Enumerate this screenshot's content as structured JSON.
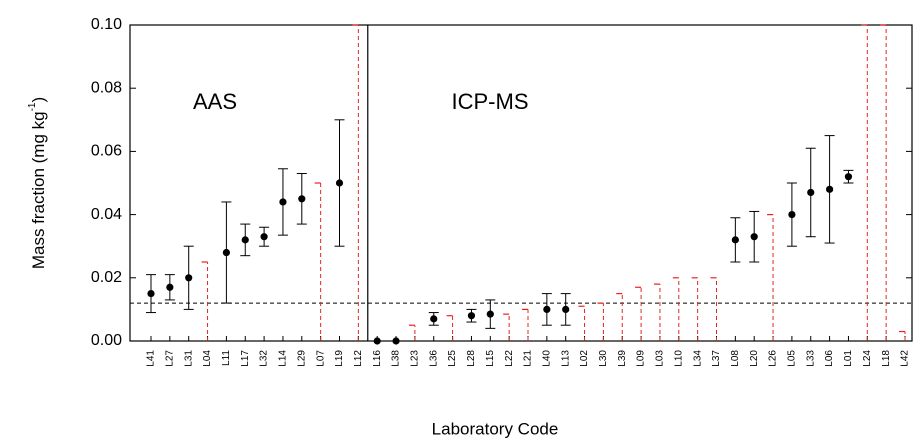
{
  "chart_data": {
    "type": "errorbar",
    "y_label_parts": [
      "Mass fraction (mg kg",
      "-1",
      ")"
    ],
    "x_label": "Laboratory Code",
    "categories": [
      "L41",
      "L27",
      "L31",
      "L04",
      "L11",
      "L17",
      "L32",
      "L14",
      "L29",
      "L07",
      "L19",
      "L12",
      "L16",
      "L38",
      "L23",
      "L36",
      "L25",
      "L28",
      "L15",
      "L22",
      "L21",
      "L40",
      "L13",
      "L02",
      "L30",
      "L39",
      "L09",
      "L03",
      "L10",
      "L34",
      "L37",
      "L08",
      "L20",
      "L26",
      "L05",
      "L33",
      "L06",
      "L01",
      "L24",
      "L18",
      "L42"
    ],
    "values": [
      0.015,
      0.017,
      0.02,
      null,
      0.028,
      0.032,
      0.033,
      0.044,
      0.045,
      null,
      0.05,
      null,
      0,
      0,
      null,
      0.007,
      null,
      0.008,
      0.0085,
      null,
      null,
      0.01,
      0.01,
      null,
      null,
      null,
      null,
      null,
      null,
      null,
      null,
      0.032,
      0.033,
      null,
      0.04,
      0.047,
      0.048,
      0.052,
      null,
      null,
      null
    ],
    "errors": [
      0.006,
      0.004,
      0.01,
      null,
      0.016,
      0.005,
      0.003,
      0.0105,
      0.008,
      null,
      0.02,
      null,
      null,
      null,
      null,
      0.002,
      null,
      0.002,
      0.0045,
      null,
      null,
      0.005,
      0.005,
      null,
      null,
      null,
      null,
      null,
      null,
      null,
      null,
      0.007,
      0.008,
      null,
      0.01,
      0.014,
      0.017,
      0.002,
      null,
      null,
      null
    ],
    "limits": [
      null,
      null,
      null,
      0.025,
      null,
      null,
      null,
      null,
      null,
      0.05,
      null,
      0.1,
      null,
      null,
      0.005,
      null,
      0.008,
      null,
      null,
      0.0085,
      0.01,
      null,
      null,
      0.011,
      0.012,
      0.015,
      0.017,
      0.018,
      0.02,
      0.02,
      0.02,
      null,
      null,
      0.04,
      null,
      null,
      null,
      null,
      0.1,
      0.1,
      0.003
    ],
    "color": "#000000",
    "limit_color": "#e8231f",
    "reference_line": 0.012,
    "groups": [
      {
        "name": "AAS",
        "size": 12
      },
      {
        "name": "ICP-MS",
        "size": 29
      }
    ],
    "ylim": [
      0,
      0.1
    ],
    "yticks": [
      {
        "value": 0,
        "label": "0.00"
      },
      {
        "value": 0.02,
        "label": "0.02"
      },
      {
        "value": 0.04,
        "label": "0.04"
      },
      {
        "value": 0.06,
        "label": "0.06"
      },
      {
        "value": 0.08,
        "label": "0.08"
      },
      {
        "value": 0.1,
        "label": "0.10"
      }
    ]
  }
}
